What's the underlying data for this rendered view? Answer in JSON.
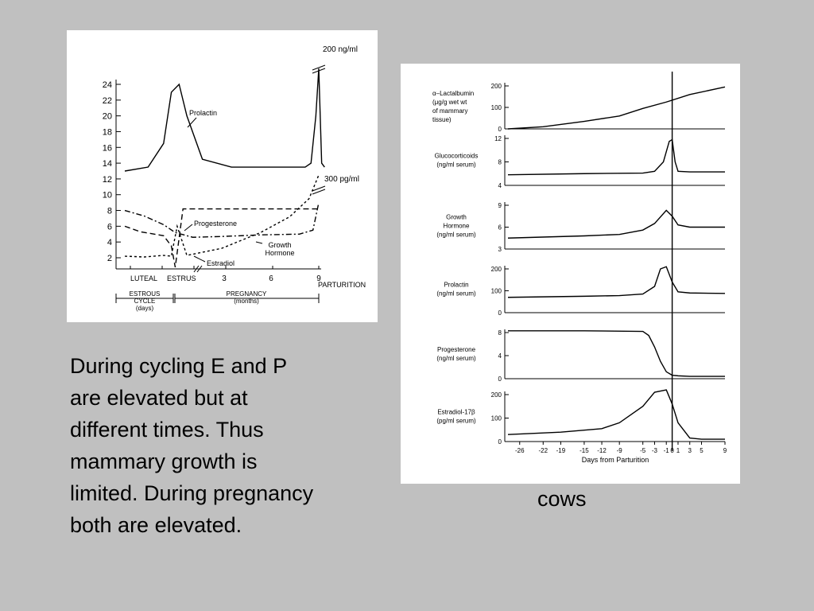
{
  "caption": {
    "lines": [
      "During cycling E and P",
      "are elevated but at",
      "different times. Thus",
      "mammary growth is",
      "limited. During pregnancy",
      "both are elevated."
    ]
  },
  "cows_label": "cows",
  "chart_data": [
    {
      "type": "line",
      "y_ticks": [
        "24",
        "22",
        "20",
        "18",
        "16",
        "14",
        "12",
        "10",
        "8",
        "6",
        "4",
        "2"
      ],
      "x_phase_labels": [
        "LUTEAL",
        "ESTRUS",
        "3",
        "6",
        "9",
        "PARTURITION"
      ],
      "annotations": {
        "top_right": "200 ng/ml",
        "mid_right": "300 pg/ml"
      },
      "series_labels": [
        "Prolactin",
        "Progesterone",
        "Growth Hormone",
        "Estradiol"
      ],
      "series": [
        {
          "name": "Prolactin",
          "x": [
            0,
            0.12,
            0.2,
            0.24,
            0.28,
            0.32,
            0.4,
            0.55,
            0.8,
            0.93,
            0.96,
            0.985,
            1.0,
            1.015,
            1.03
          ],
          "y": [
            13,
            13.5,
            16.5,
            23,
            24,
            20,
            14.5,
            13.5,
            13.5,
            13.5,
            14,
            20,
            26,
            14,
            13.5
          ]
        },
        {
          "name": "Progesterone",
          "x": [
            0,
            0.08,
            0.2,
            0.24,
            0.26,
            0.3,
            0.5,
            0.8,
            0.96,
            1.0
          ],
          "y": [
            6,
            5.3,
            4.8,
            3.5,
            0.8,
            8.2,
            8.2,
            8.2,
            8.2,
            8.2
          ]
        },
        {
          "name": "Growth Hormone",
          "x": [
            0,
            0.1,
            0.2,
            0.26,
            0.35,
            0.5,
            0.7,
            0.9,
            0.97,
            1.0
          ],
          "y": [
            8,
            7.3,
            6.2,
            5.2,
            4.6,
            4.7,
            4.9,
            5.0,
            5.5,
            9
          ]
        },
        {
          "name": "Estradiol",
          "x": [
            0,
            0.1,
            0.2,
            0.24,
            0.27,
            0.32,
            0.5,
            0.7,
            0.85,
            0.95,
            1.0
          ],
          "y": [
            2.2,
            2.1,
            2.3,
            2.2,
            6,
            2.3,
            3.2,
            5.2,
            7.2,
            9.5,
            12.5
          ]
        }
      ],
      "bottom_labels": {
        "estrous_cycle": "ESTROUS CYCLE (days)",
        "pregnancy": "PREGNANCY (months)"
      }
    },
    {
      "type": "line",
      "x_ticks": [
        "-26",
        "-22",
        "-19",
        "-15",
        "-12",
        "-9",
        "-5",
        "-3",
        "-1",
        "0",
        "1",
        "3",
        "5",
        "9"
      ],
      "xlabel": "Days from Parturition",
      "panels": [
        {
          "label": "α–Lactalbumin (μg/g wet wt of mammary tissue)",
          "label_lines": [
            "α–Lactalbumin",
            "(μg/g wet wt",
            "of mammary",
            "tissue)"
          ],
          "yticks": [
            "200",
            "100",
            "0"
          ],
          "ylim": [
            0,
            200
          ],
          "x": [
            -28,
            -22,
            -15,
            -9,
            -5,
            -1,
            3,
            9
          ],
          "y": [
            0,
            10,
            35,
            60,
            95,
            125,
            160,
            195
          ]
        },
        {
          "label": "Glucocorticoids (ng/ml serum)",
          "label_lines": [
            "Glucocorticoids",
            "(ng/ml serum)"
          ],
          "yticks": [
            "12",
            "8",
            "4"
          ],
          "ylim": [
            4,
            12
          ],
          "x": [
            -28,
            -15,
            -5,
            -3,
            -1.5,
            -0.5,
            0,
            0.5,
            1,
            3,
            9
          ],
          "y": [
            5.8,
            6.0,
            6.1,
            6.4,
            8,
            11.5,
            11.8,
            8,
            6.4,
            6.3,
            6.3
          ]
        },
        {
          "label": "Growth Hormone (ng/ml serum)",
          "label_lines": [
            "Growth",
            "Hormone",
            "(ng/ml serum)"
          ],
          "yticks": [
            "9",
            "6",
            "3"
          ],
          "ylim": [
            3,
            9
          ],
          "x": [
            -28,
            -15,
            -9,
            -5,
            -3,
            -1,
            0,
            1,
            3,
            9
          ],
          "y": [
            4.5,
            4.8,
            5.0,
            5.6,
            6.5,
            8.3,
            7.5,
            6.3,
            6.0,
            6.0
          ]
        },
        {
          "label": "Prolactin (ng/ml serum)",
          "label_lines": [
            "Prolactin",
            "(ng/ml serum)"
          ],
          "yticks": [
            "200",
            "100",
            "0"
          ],
          "ylim": [
            0,
            200
          ],
          "x": [
            -28,
            -15,
            -9,
            -5,
            -3,
            -2,
            -1,
            0,
            1,
            3,
            9
          ],
          "y": [
            70,
            75,
            78,
            85,
            120,
            200,
            210,
            140,
            95,
            90,
            88
          ]
        },
        {
          "label": "Progesterone (ng/ml serum)",
          "label_lines": [
            "Progesterone",
            "(ng/ml serum)"
          ],
          "yticks": [
            "8",
            "4",
            "0"
          ],
          "ylim": [
            0,
            8
          ],
          "x": [
            -28,
            -15,
            -5,
            -4,
            -3,
            -2,
            -1,
            0,
            1,
            3,
            9
          ],
          "y": [
            8.3,
            8.3,
            8.2,
            7.5,
            5.5,
            3.0,
            1.2,
            0.6,
            0.5,
            0.4,
            0.4
          ]
        },
        {
          "label": "Estradiol-17β (pg/ml serum)",
          "label_lines": [
            "Estradiol-17β",
            "(pg/ml serum)"
          ],
          "yticks": [
            "200",
            "100",
            "0"
          ],
          "ylim": [
            0,
            200
          ],
          "x": [
            -28,
            -19,
            -12,
            -9,
            -5,
            -3,
            -1,
            0,
            1,
            3,
            5,
            9
          ],
          "y": [
            30,
            40,
            55,
            80,
            150,
            210,
            220,
            160,
            80,
            15,
            10,
            10
          ]
        }
      ]
    }
  ]
}
